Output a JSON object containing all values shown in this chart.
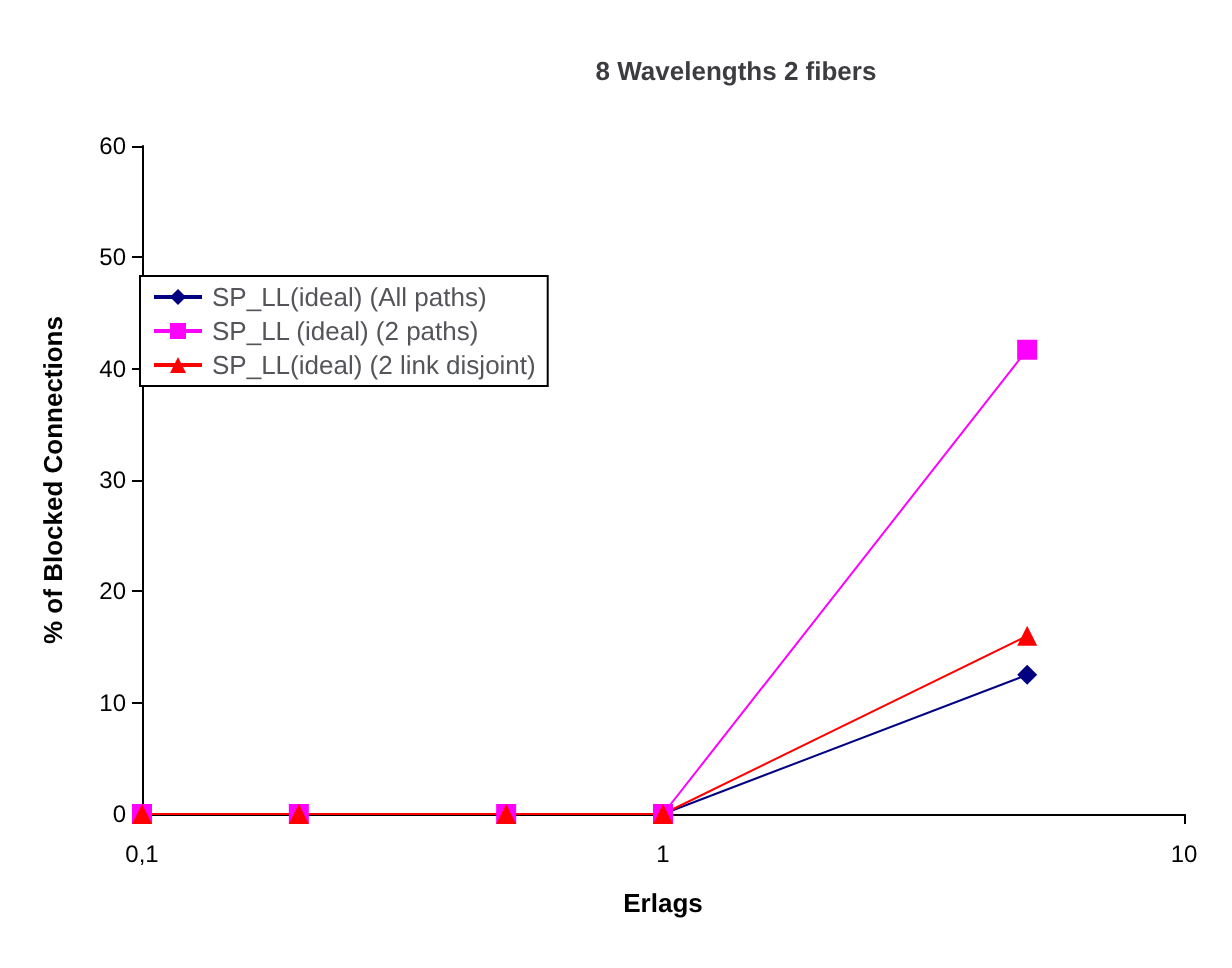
{
  "chart_data": {
    "type": "line",
    "title": "8 Wavelengths 2 fibers",
    "xlabel": "Erlags",
    "ylabel": "% of Blocked Connections",
    "log": "x",
    "x": [
      0.1,
      0.2,
      0.5,
      1,
      5
    ],
    "xlim": [
      0.1,
      10
    ],
    "xticks": [
      {
        "value": 0.1,
        "label": "0,1"
      },
      1,
      10
    ],
    "ylim": [
      0,
      60
    ],
    "yticks": [
      0,
      10,
      20,
      30,
      40,
      50,
      60
    ],
    "grid": false,
    "legend": "top left",
    "series": [
      {
        "name": "SP_LL(ideal) (All paths)",
        "color": "#000080",
        "marker": "diamond",
        "values": [
          null,
          null,
          null,
          0,
          12.5
        ]
      },
      {
        "name": "SP_LL (ideal) (2 paths)",
        "color": "#ff00ff",
        "marker": "square",
        "values": [
          0,
          0,
          0,
          0,
          41.7
        ]
      },
      {
        "name": "SP_LL(ideal) (2 link disjoint)",
        "color": "#ff0000",
        "marker": "triangle",
        "values": [
          0,
          0,
          0,
          0,
          16
        ]
      }
    ]
  }
}
